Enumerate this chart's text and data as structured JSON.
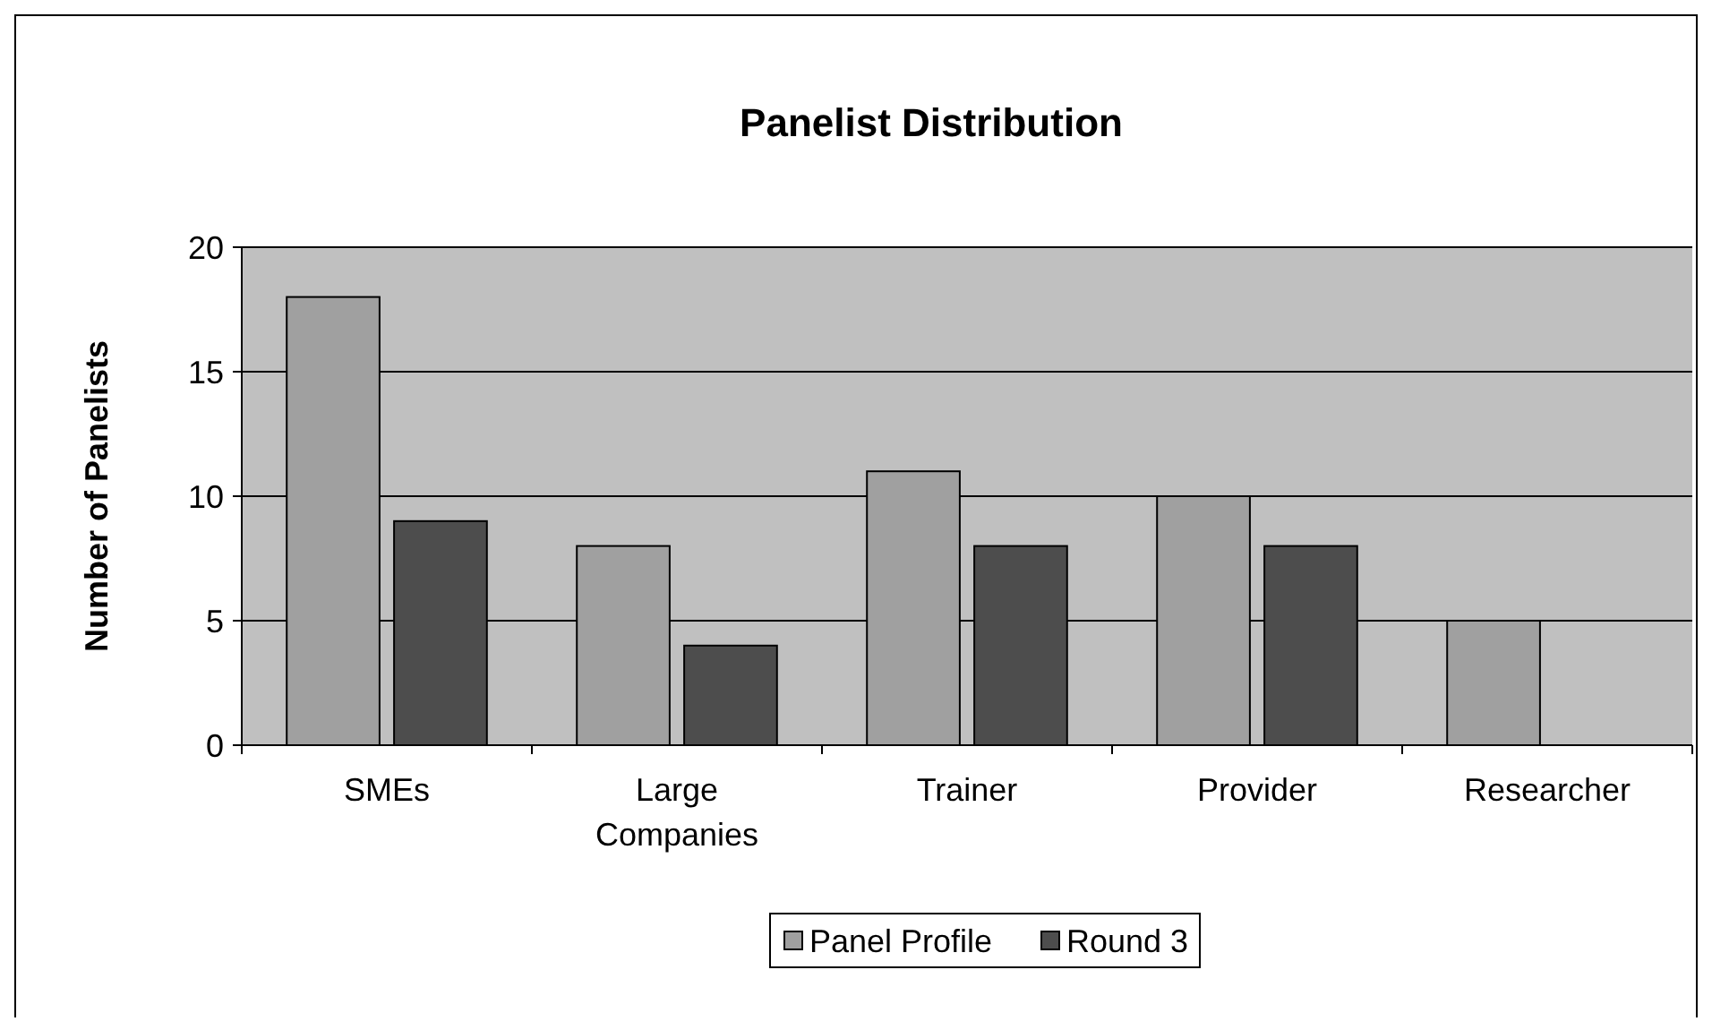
{
  "chart_data": {
    "type": "bar",
    "title": "Panelist Distribution",
    "ylabel": "Number of Panelists",
    "categories": [
      "SMEs",
      "Large Companies",
      "Trainer",
      "Provider",
      "Researcher"
    ],
    "series": [
      {
        "name": "Panel Profile",
        "color": "#a0a0a0",
        "values": [
          18,
          8,
          11,
          10,
          5
        ]
      },
      {
        "name": "Round 3",
        "color": "#4d4d4d",
        "values": [
          9,
          4,
          8,
          8,
          0
        ]
      }
    ],
    "ylim": [
      0,
      20
    ],
    "yticks": [
      0,
      5,
      10,
      15,
      20
    ],
    "grid": "y",
    "legend": "bottom"
  }
}
